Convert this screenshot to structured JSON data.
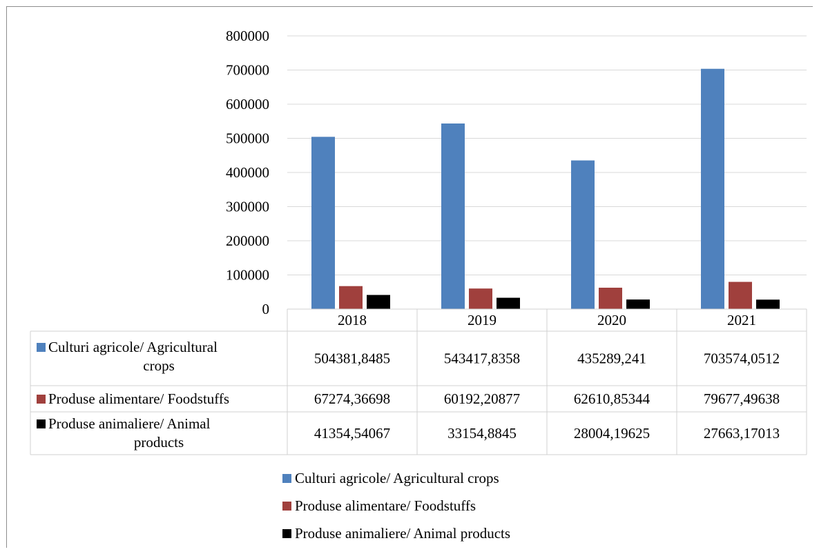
{
  "chart_data": {
    "type": "bar",
    "categories": [
      "2018",
      "2019",
      "2020",
      "2021"
    ],
    "series": [
      {
        "name": "Culturi agricole/ Agricultural crops",
        "color": "#4f81bd",
        "values": [
          504381.8485,
          543417.8358,
          435289.241,
          703574.0512
        ],
        "labels": [
          "504381,8485",
          "543417,8358",
          "435289,241",
          "703574,0512"
        ]
      },
      {
        "name": "Produse alimentare/ Foodstuffs",
        "color": "#a0403d",
        "values": [
          67274.36698,
          60192.20877,
          62610.85344,
          79677.49638
        ],
        "labels": [
          "67274,36698",
          "60192,20877",
          "62610,85344",
          "79677,49638"
        ]
      },
      {
        "name": "Produse animaliere/ Animal products",
        "color": "#000000",
        "values": [
          41354.54067,
          33154.8845,
          28004.19625,
          27663.17013
        ],
        "labels": [
          "41354,54067",
          "33154,8845",
          "28004,19625",
          "27663,17013"
        ]
      }
    ],
    "yticks": [
      "0",
      "100000",
      "200000",
      "300000",
      "400000",
      "500000",
      "600000",
      "700000",
      "800000"
    ],
    "ylim": [
      0,
      800000
    ],
    "grid": true,
    "legend_position": "bottom",
    "data_table": true
  }
}
